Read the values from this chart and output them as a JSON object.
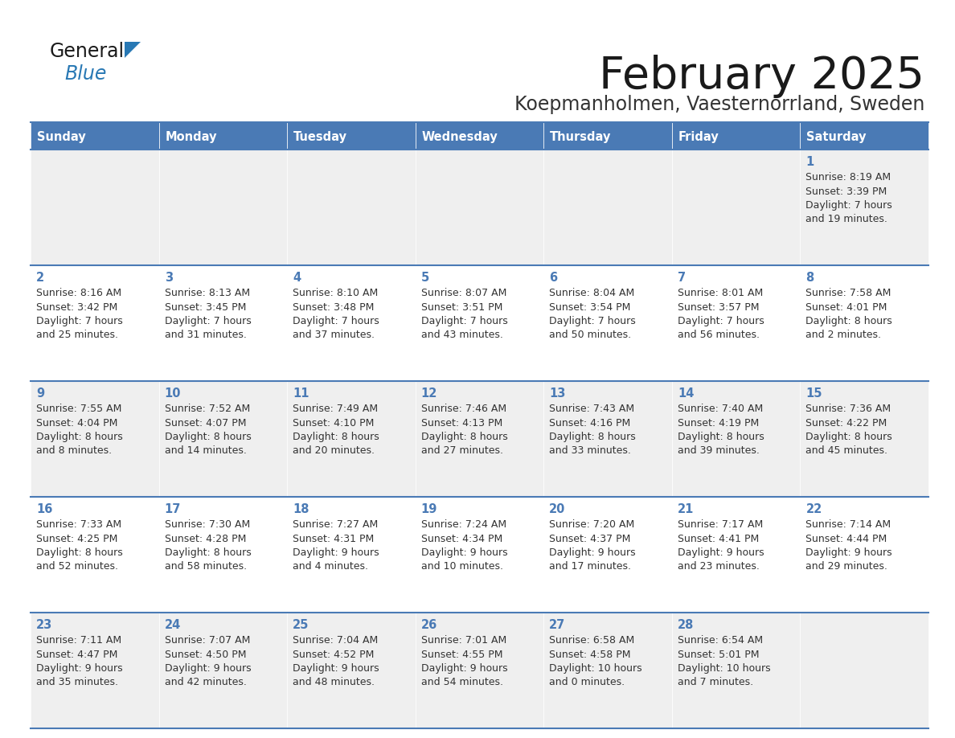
{
  "title": "February 2025",
  "subtitle": "Koepmanholmen, Vaesternorrland, Sweden",
  "days_of_week": [
    "Sunday",
    "Monday",
    "Tuesday",
    "Wednesday",
    "Thursday",
    "Friday",
    "Saturday"
  ],
  "header_bg": "#4a7ab5",
  "header_text": "#ffffff",
  "row_bg_odd": "#efefef",
  "row_bg_even": "#ffffff",
  "border_color": "#4a7ab5",
  "day_number_color": "#4a7ab5",
  "cell_text_color": "#333333",
  "title_color": "#1a1a1a",
  "subtitle_color": "#333333",
  "logo_general_color": "#1a1a1a",
  "logo_blue_color": "#2878b4",
  "calendar_data": [
    [
      {
        "day": "",
        "lines": []
      },
      {
        "day": "",
        "lines": []
      },
      {
        "day": "",
        "lines": []
      },
      {
        "day": "",
        "lines": []
      },
      {
        "day": "",
        "lines": []
      },
      {
        "day": "",
        "lines": []
      },
      {
        "day": "1",
        "lines": [
          "Sunrise: 8:19 AM",
          "Sunset: 3:39 PM",
          "Daylight: 7 hours",
          "and 19 minutes."
        ]
      }
    ],
    [
      {
        "day": "2",
        "lines": [
          "Sunrise: 8:16 AM",
          "Sunset: 3:42 PM",
          "Daylight: 7 hours",
          "and 25 minutes."
        ]
      },
      {
        "day": "3",
        "lines": [
          "Sunrise: 8:13 AM",
          "Sunset: 3:45 PM",
          "Daylight: 7 hours",
          "and 31 minutes."
        ]
      },
      {
        "day": "4",
        "lines": [
          "Sunrise: 8:10 AM",
          "Sunset: 3:48 PM",
          "Daylight: 7 hours",
          "and 37 minutes."
        ]
      },
      {
        "day": "5",
        "lines": [
          "Sunrise: 8:07 AM",
          "Sunset: 3:51 PM",
          "Daylight: 7 hours",
          "and 43 minutes."
        ]
      },
      {
        "day": "6",
        "lines": [
          "Sunrise: 8:04 AM",
          "Sunset: 3:54 PM",
          "Daylight: 7 hours",
          "and 50 minutes."
        ]
      },
      {
        "day": "7",
        "lines": [
          "Sunrise: 8:01 AM",
          "Sunset: 3:57 PM",
          "Daylight: 7 hours",
          "and 56 minutes."
        ]
      },
      {
        "day": "8",
        "lines": [
          "Sunrise: 7:58 AM",
          "Sunset: 4:01 PM",
          "Daylight: 8 hours",
          "and 2 minutes."
        ]
      }
    ],
    [
      {
        "day": "9",
        "lines": [
          "Sunrise: 7:55 AM",
          "Sunset: 4:04 PM",
          "Daylight: 8 hours",
          "and 8 minutes."
        ]
      },
      {
        "day": "10",
        "lines": [
          "Sunrise: 7:52 AM",
          "Sunset: 4:07 PM",
          "Daylight: 8 hours",
          "and 14 minutes."
        ]
      },
      {
        "day": "11",
        "lines": [
          "Sunrise: 7:49 AM",
          "Sunset: 4:10 PM",
          "Daylight: 8 hours",
          "and 20 minutes."
        ]
      },
      {
        "day": "12",
        "lines": [
          "Sunrise: 7:46 AM",
          "Sunset: 4:13 PM",
          "Daylight: 8 hours",
          "and 27 minutes."
        ]
      },
      {
        "day": "13",
        "lines": [
          "Sunrise: 7:43 AM",
          "Sunset: 4:16 PM",
          "Daylight: 8 hours",
          "and 33 minutes."
        ]
      },
      {
        "day": "14",
        "lines": [
          "Sunrise: 7:40 AM",
          "Sunset: 4:19 PM",
          "Daylight: 8 hours",
          "and 39 minutes."
        ]
      },
      {
        "day": "15",
        "lines": [
          "Sunrise: 7:36 AM",
          "Sunset: 4:22 PM",
          "Daylight: 8 hours",
          "and 45 minutes."
        ]
      }
    ],
    [
      {
        "day": "16",
        "lines": [
          "Sunrise: 7:33 AM",
          "Sunset: 4:25 PM",
          "Daylight: 8 hours",
          "and 52 minutes."
        ]
      },
      {
        "day": "17",
        "lines": [
          "Sunrise: 7:30 AM",
          "Sunset: 4:28 PM",
          "Daylight: 8 hours",
          "and 58 minutes."
        ]
      },
      {
        "day": "18",
        "lines": [
          "Sunrise: 7:27 AM",
          "Sunset: 4:31 PM",
          "Daylight: 9 hours",
          "and 4 minutes."
        ]
      },
      {
        "day": "19",
        "lines": [
          "Sunrise: 7:24 AM",
          "Sunset: 4:34 PM",
          "Daylight: 9 hours",
          "and 10 minutes."
        ]
      },
      {
        "day": "20",
        "lines": [
          "Sunrise: 7:20 AM",
          "Sunset: 4:37 PM",
          "Daylight: 9 hours",
          "and 17 minutes."
        ]
      },
      {
        "day": "21",
        "lines": [
          "Sunrise: 7:17 AM",
          "Sunset: 4:41 PM",
          "Daylight: 9 hours",
          "and 23 minutes."
        ]
      },
      {
        "day": "22",
        "lines": [
          "Sunrise: 7:14 AM",
          "Sunset: 4:44 PM",
          "Daylight: 9 hours",
          "and 29 minutes."
        ]
      }
    ],
    [
      {
        "day": "23",
        "lines": [
          "Sunrise: 7:11 AM",
          "Sunset: 4:47 PM",
          "Daylight: 9 hours",
          "and 35 minutes."
        ]
      },
      {
        "day": "24",
        "lines": [
          "Sunrise: 7:07 AM",
          "Sunset: 4:50 PM",
          "Daylight: 9 hours",
          "and 42 minutes."
        ]
      },
      {
        "day": "25",
        "lines": [
          "Sunrise: 7:04 AM",
          "Sunset: 4:52 PM",
          "Daylight: 9 hours",
          "and 48 minutes."
        ]
      },
      {
        "day": "26",
        "lines": [
          "Sunrise: 7:01 AM",
          "Sunset: 4:55 PM",
          "Daylight: 9 hours",
          "and 54 minutes."
        ]
      },
      {
        "day": "27",
        "lines": [
          "Sunrise: 6:58 AM",
          "Sunset: 4:58 PM",
          "Daylight: 10 hours",
          "and 0 minutes."
        ]
      },
      {
        "day": "28",
        "lines": [
          "Sunrise: 6:54 AM",
          "Sunset: 5:01 PM",
          "Daylight: 10 hours",
          "and 7 minutes."
        ]
      },
      {
        "day": "",
        "lines": []
      }
    ]
  ]
}
